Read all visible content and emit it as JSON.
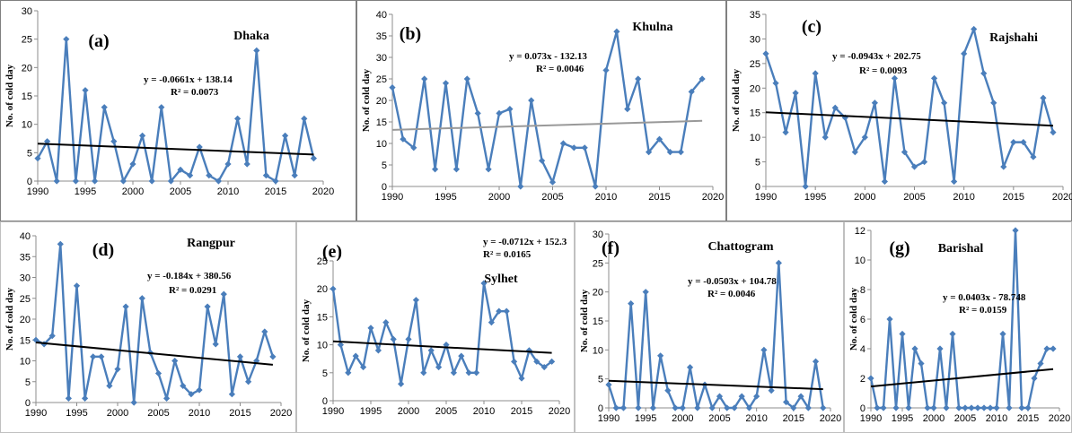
{
  "chart_data": [
    {
      "type": "line",
      "panel_label": "(a)",
      "title": "Dhaka",
      "ylabel": "No. of cold day",
      "equation": "y = -0.0661x + 138.14",
      "r_squared": "R² = 0.0073",
      "x": [
        1990,
        1991,
        1992,
        1993,
        1994,
        1995,
        1996,
        1997,
        1998,
        1999,
        2000,
        2001,
        2002,
        2003,
        2004,
        2005,
        2006,
        2007,
        2008,
        2009,
        2010,
        2011,
        2012,
        2013,
        2014,
        2015,
        2016,
        2017,
        2018,
        2019
      ],
      "y": [
        4,
        7,
        0,
        25,
        0,
        16,
        0,
        13,
        7,
        0,
        3,
        8,
        0,
        13,
        0,
        2,
        1,
        6,
        1,
        0,
        3,
        11,
        3,
        23,
        1,
        0,
        8,
        1,
        11,
        4
      ],
      "trend": {
        "slope": -0.0661,
        "intercept": 138.14
      },
      "xlim": [
        1990,
        2020
      ],
      "ylim": [
        0,
        30
      ],
      "xticks": [
        1990,
        1995,
        2000,
        2005,
        2010,
        2015,
        2020
      ],
      "yticks": [
        0,
        5,
        10,
        15,
        20,
        25,
        30
      ],
      "series_color": "#4a7ebb",
      "trend_color": "#000000",
      "grid": false
    },
    {
      "type": "line",
      "panel_label": "(b)",
      "title": "Khulna",
      "ylabel": "No. of cold day",
      "equation": "y = 0.073x - 132.13",
      "r_squared": "R² = 0.0046",
      "x": [
        1990,
        1991,
        1992,
        1993,
        1994,
        1995,
        1996,
        1997,
        1998,
        1999,
        2000,
        2001,
        2002,
        2003,
        2004,
        2005,
        2006,
        2007,
        2008,
        2009,
        2010,
        2011,
        2012,
        2013,
        2014,
        2015,
        2016,
        2017,
        2018,
        2019
      ],
      "y": [
        23,
        11,
        9,
        25,
        4,
        24,
        4,
        25,
        17,
        4,
        17,
        18,
        0,
        20,
        6,
        1,
        10,
        9,
        9,
        0,
        27,
        36,
        18,
        25,
        8,
        11,
        8,
        8,
        22,
        25
      ],
      "trend": {
        "slope": 0.073,
        "intercept": -132.13
      },
      "xlim": [
        1990,
        2020
      ],
      "ylim": [
        0,
        40
      ],
      "xticks": [
        1990,
        1995,
        2000,
        2005,
        2010,
        2015,
        2020
      ],
      "yticks": [
        0,
        5,
        10,
        15,
        20,
        25,
        30,
        35,
        40
      ],
      "series_color": "#4a7ebb",
      "trend_color": "#999999",
      "grid": false
    },
    {
      "type": "line",
      "panel_label": "(c)",
      "title": "Rajshahi",
      "ylabel": "No. of cold day",
      "equation": "y = -0.0943x + 202.75",
      "r_squared": "R² = 0.0093",
      "x": [
        1990,
        1991,
        1992,
        1993,
        1994,
        1995,
        1996,
        1997,
        1998,
        1999,
        2000,
        2001,
        2002,
        2003,
        2004,
        2005,
        2006,
        2007,
        2008,
        2009,
        2010,
        2011,
        2012,
        2013,
        2014,
        2015,
        2016,
        2017,
        2018,
        2019
      ],
      "y": [
        27,
        21,
        11,
        19,
        0,
        23,
        10,
        16,
        14,
        7,
        10,
        17,
        1,
        22,
        7,
        4,
        5,
        22,
        17,
        1,
        27,
        32,
        23,
        17,
        4,
        9,
        9,
        6,
        18,
        11
      ],
      "trend": {
        "slope": -0.0943,
        "intercept": 202.75
      },
      "xlim": [
        1990,
        2020
      ],
      "ylim": [
        0,
        35
      ],
      "xticks": [
        1990,
        1995,
        2000,
        2005,
        2010,
        2015,
        2020
      ],
      "yticks": [
        0,
        5,
        10,
        15,
        20,
        25,
        30,
        35
      ],
      "series_color": "#4a7ebb",
      "trend_color": "#000000",
      "grid": false
    },
    {
      "type": "line",
      "panel_label": "(d)",
      "title": "Rangpur",
      "ylabel": "No. of cold day",
      "equation": "y = -0.184x + 380.56",
      "r_squared": "R² = 0.0291",
      "x": [
        1990,
        1991,
        1992,
        1993,
        1994,
        1995,
        1996,
        1997,
        1998,
        1999,
        2000,
        2001,
        2002,
        2003,
        2004,
        2005,
        2006,
        2007,
        2008,
        2009,
        2010,
        2011,
        2012,
        2013,
        2014,
        2015,
        2016,
        2017,
        2018,
        2019
      ],
      "y": [
        15,
        14,
        16,
        38,
        1,
        28,
        1,
        11,
        11,
        4,
        8,
        23,
        0,
        25,
        12,
        7,
        1,
        10,
        4,
        2,
        3,
        23,
        14,
        26,
        2,
        11,
        5,
        10,
        17,
        11
      ],
      "trend": {
        "slope": -0.184,
        "intercept": 380.56
      },
      "xlim": [
        1990,
        2020
      ],
      "ylim": [
        0,
        40
      ],
      "xticks": [
        1990,
        1995,
        2000,
        2005,
        2010,
        2015,
        2020
      ],
      "yticks": [
        0,
        5,
        10,
        15,
        20,
        25,
        30,
        35,
        40
      ],
      "series_color": "#4a7ebb",
      "trend_color": "#000000",
      "grid": false
    },
    {
      "type": "line",
      "panel_label": "(e)",
      "title": "Sylhet",
      "ylabel": "No. of cold day",
      "equation": "y = -0.0712x + 152.3",
      "r_squared": "R² = 0.0165",
      "x": [
        1990,
        1991,
        1992,
        1993,
        1994,
        1995,
        1996,
        1997,
        1998,
        1999,
        2000,
        2001,
        2002,
        2003,
        2004,
        2005,
        2006,
        2007,
        2008,
        2009,
        2010,
        2011,
        2012,
        2013,
        2014,
        2015,
        2016,
        2017,
        2018,
        2019
      ],
      "y": [
        20,
        10,
        5,
        8,
        6,
        13,
        9,
        14,
        11,
        3,
        11,
        18,
        5,
        9,
        6,
        10,
        5,
        8,
        5,
        5,
        21,
        14,
        16,
        16,
        7,
        4,
        9,
        7,
        6,
        7
      ],
      "trend": {
        "slope": -0.0712,
        "intercept": 152.3
      },
      "xlim": [
        1990,
        2020
      ],
      "ylim": [
        0,
        25
      ],
      "xticks": [
        1990,
        1995,
        2000,
        2005,
        2010,
        2015,
        2020
      ],
      "yticks": [
        0,
        5,
        10,
        15,
        20,
        25
      ],
      "series_color": "#4a7ebb",
      "trend_color": "#000000",
      "grid": false
    },
    {
      "type": "line",
      "panel_label": "(f)",
      "title": "Chattogram",
      "ylabel": "No. of cold day",
      "equation": "y = -0.0503x + 104.78",
      "r_squared": "R² = 0.0046",
      "x": [
        1990,
        1991,
        1992,
        1993,
        1994,
        1995,
        1996,
        1997,
        1998,
        1999,
        2000,
        2001,
        2002,
        2003,
        2004,
        2005,
        2006,
        2007,
        2008,
        2009,
        2010,
        2011,
        2012,
        2013,
        2014,
        2015,
        2016,
        2017,
        2018,
        2019
      ],
      "y": [
        4,
        0,
        0,
        18,
        0,
        20,
        0,
        9,
        3,
        0,
        0,
        7,
        0,
        4,
        0,
        2,
        0,
        0,
        2,
        0,
        2,
        10,
        3,
        25,
        1,
        0,
        2,
        0,
        8,
        0
      ],
      "trend": {
        "slope": -0.0503,
        "intercept": 104.78
      },
      "xlim": [
        1990,
        2020
      ],
      "ylim": [
        0,
        30
      ],
      "xticks": [
        1990,
        1995,
        2000,
        2005,
        2010,
        2015,
        2020
      ],
      "yticks": [
        0,
        5,
        10,
        15,
        20,
        25,
        30
      ],
      "series_color": "#4a7ebb",
      "trend_color": "#000000",
      "grid": false
    },
    {
      "type": "line",
      "panel_label": "(g)",
      "title": "Barishal",
      "ylabel": "No. of cold day",
      "equation": "y = 0.0403x - 78.748",
      "r_squared": "R² = 0.0159",
      "x": [
        1990,
        1991,
        1992,
        1993,
        1994,
        1995,
        1996,
        1997,
        1998,
        1999,
        2000,
        2001,
        2002,
        2003,
        2004,
        2005,
        2006,
        2007,
        2008,
        2009,
        2010,
        2011,
        2012,
        2013,
        2014,
        2015,
        2016,
        2017,
        2018,
        2019
      ],
      "y": [
        2,
        0,
        0,
        6,
        0,
        5,
        0,
        4,
        3,
        0,
        0,
        4,
        0,
        5,
        0,
        0,
        0,
        0,
        0,
        0,
        0,
        5,
        0,
        12,
        0,
        0,
        2,
        3,
        4,
        4
      ],
      "trend": {
        "slope": 0.0403,
        "intercept": -78.748
      },
      "xlim": [
        1990,
        2020
      ],
      "ylim": [
        0,
        12
      ],
      "xticks": [
        1990,
        1995,
        2000,
        2005,
        2010,
        2015,
        2020
      ],
      "yticks": [
        0,
        2,
        4,
        6,
        8,
        10,
        12
      ],
      "series_color": "#4a7ebb",
      "trend_color": "#000000",
      "grid": false
    }
  ]
}
